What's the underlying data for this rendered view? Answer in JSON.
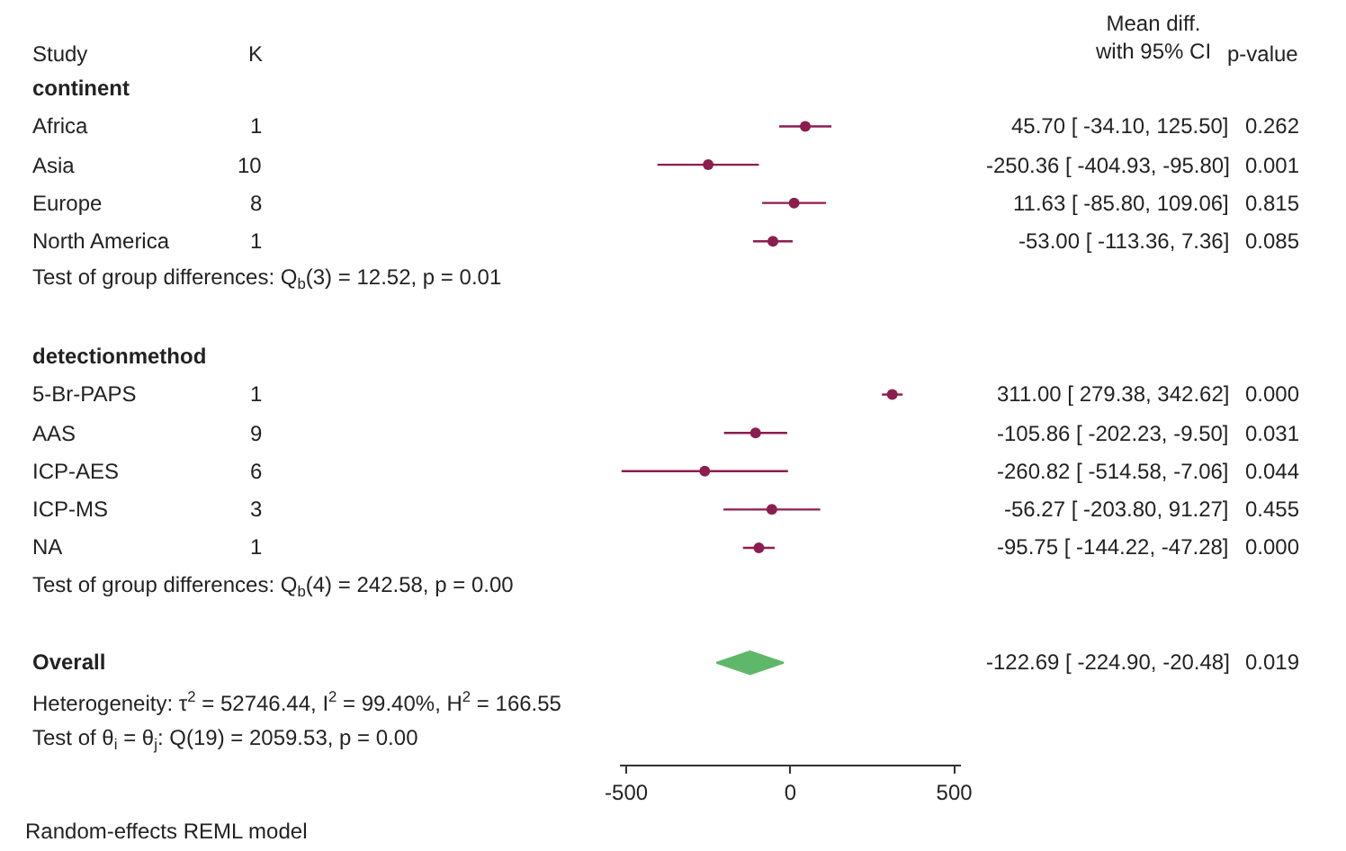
{
  "chart_data": {
    "type": "scatter",
    "orientation": "horizontal",
    "categories": [
      "continent",
      "Africa",
      "Asia",
      "Europe",
      "North America",
      "Test of group differences: Q$_{b}$(3) = 12.52, p = 0.01",
      null,
      "detectionmethod",
      "5-Br-PAPS",
      "AAS",
      "ICP-AES",
      "ICP-MS",
      "NA",
      "Test of group differences: Q$_{b}$(4) = 242.58, p = 0.00",
      null,
      "Overall",
      "Heterogeneity: τ$^{2}$ = 52746.44, I$^{2}$ = 99.40%, H$^{2}$ = 166.55",
      "Test of θ$_{i}$ = θ$_{j}$: Q(19) = 2059.53, p = 0.00"
    ],
    "series": [
      {
        "color": "#8c1d4f",
        "marker": "circle",
        "values": [
          null,
          45.7,
          -250.36,
          11.63,
          -53.0,
          null,
          null,
          null,
          311.0,
          -105.86,
          -260.82,
          -56.27,
          -95.75,
          null,
          null,
          null,
          null,
          null
        ],
        "errors": [
          null,
          [
            -34.1,
            125.5
          ],
          [
            -404.93,
            -95.8
          ],
          [
            -85.8,
            109.06
          ],
          [
            -113.36,
            7.36
          ],
          null,
          null,
          null,
          [
            279.38,
            342.62
          ],
          [
            -202.23,
            -9.5
          ],
          [
            -514.58,
            -7.06
          ],
          [
            -203.8,
            91.27
          ],
          [
            -144.22,
            -47.28
          ],
          null,
          null,
          null,
          null,
          null
        ]
      },
      {
        "color": "#5fb86a",
        "marker": "diamond",
        "values": [
          null,
          null,
          null,
          null,
          null,
          null,
          null,
          null,
          null,
          null,
          null,
          null,
          null,
          null,
          null,
          -122.69,
          null,
          null
        ],
        "errors": [
          null,
          null,
          null,
          null,
          null,
          null,
          null,
          null,
          null,
          null,
          null,
          null,
          null,
          null,
          null,
          [
            -224.9,
            -20.48
          ],
          null,
          null
        ]
      }
    ],
    "value_labels": [
      null,
      "45.70 [ -34.10, 125.50]",
      "-250.36 [ -404.93, -95.80]",
      "11.63 [ -85.80, 109.06]",
      "-53.00 [ -113.36, 7.36]",
      null,
      null,
      null,
      "311.00 [ 279.38, 342.62]",
      "-105.86 [ -202.23, -9.50]",
      "-260.82 [ -514.58, -7.06]",
      "-56.27 [ -203.80, 91.27]",
      "-95.75 [ -144.22, -47.28]",
      null,
      null,
      "-122.69 [ -224.90, -20.48]",
      null,
      null
    ],
    "annotations": [
      "Study",
      "K",
      "Mean diff.\nwith 95% CI",
      "p-value",
      "1",
      "0.262",
      "10",
      "0.001",
      "8",
      "0.815",
      "1",
      "0.085",
      "1",
      "0.000",
      "9",
      "0.031",
      "6",
      "0.044",
      "3",
      "0.455",
      "1",
      "0.000",
      "0.019",
      "Random-effects REML model"
    ],
    "xlim": [
      -520,
      520
    ],
    "xticks": [
      -500,
      0,
      500
    ],
    "tick_labels": "x"
  }
}
